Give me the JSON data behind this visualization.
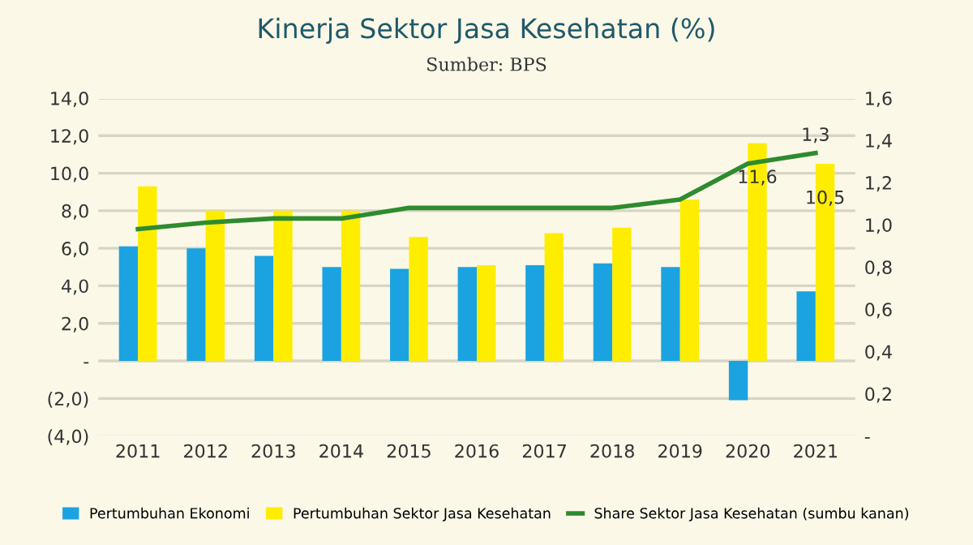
{
  "chart_data": {
    "type": "bar",
    "title": "Kinerja Sektor Jasa Kesehatan (%)",
    "subtitle": "Sumber: BPS",
    "categories": [
      "2011",
      "2012",
      "2013",
      "2014",
      "2015",
      "2016",
      "2017",
      "2018",
      "2019",
      "2020",
      "2021"
    ],
    "series": [
      {
        "name": "Pertumbuhan Ekonomi",
        "color": "#1aa3e0",
        "values": [
          6.1,
          6.0,
          5.6,
          5.0,
          4.9,
          5.0,
          5.1,
          5.2,
          5.0,
          -2.1,
          3.7
        ]
      },
      {
        "name": "Pertumbuhan Sektor Jasa Kesehatan",
        "color": "#ffed00",
        "values": [
          9.3,
          8.0,
          8.0,
          8.0,
          6.6,
          5.1,
          6.8,
          7.1,
          8.6,
          11.6,
          10.5
        ],
        "value_labels": [
          null,
          null,
          null,
          null,
          null,
          null,
          null,
          null,
          null,
          "11,6",
          "10,5"
        ]
      },
      {
        "name": "Share Sektor Jasa Kesehatan (sumbu kanan)",
        "type": "line",
        "axis": "y2",
        "color": "#2e8b2e",
        "values": [
          0.98,
          1.01,
          1.03,
          1.03,
          1.08,
          1.08,
          1.08,
          1.08,
          1.12,
          1.29,
          1.34
        ],
        "value_labels": [
          null,
          null,
          null,
          null,
          null,
          null,
          null,
          null,
          null,
          null,
          "1,3"
        ]
      }
    ],
    "ylim": [
      -4,
      14
    ],
    "yticks": [
      {
        "value": -4,
        "label": "(4,0)"
      },
      {
        "value": -2,
        "label": "(2,0)"
      },
      {
        "value": 0,
        "label": "-"
      },
      {
        "value": 2,
        "label": "2,0"
      },
      {
        "value": 4,
        "label": "4,0"
      },
      {
        "value": 6,
        "label": "6,0"
      },
      {
        "value": 8,
        "label": "8,0"
      },
      {
        "value": 10,
        "label": "10,0"
      },
      {
        "value": 12,
        "label": "12,0"
      },
      {
        "value": 14,
        "label": "14,0"
      }
    ],
    "y2lim": [
      0,
      1.6
    ],
    "y2ticks": [
      {
        "value": 0,
        "label": "-"
      },
      {
        "value": 0.2,
        "label": "0,2"
      },
      {
        "value": 0.4,
        "label": "0,4"
      },
      {
        "value": 0.6,
        "label": "0,6"
      },
      {
        "value": 0.8,
        "label": "0,8"
      },
      {
        "value": 1.0,
        "label": "1,0"
      },
      {
        "value": 1.2,
        "label": "1,2"
      },
      {
        "value": 1.4,
        "label": "1,4"
      },
      {
        "value": 1.6,
        "label": "1,6"
      }
    ],
    "grid": "y",
    "legend": "bottom",
    "line_style": "solid",
    "marker": "none"
  }
}
